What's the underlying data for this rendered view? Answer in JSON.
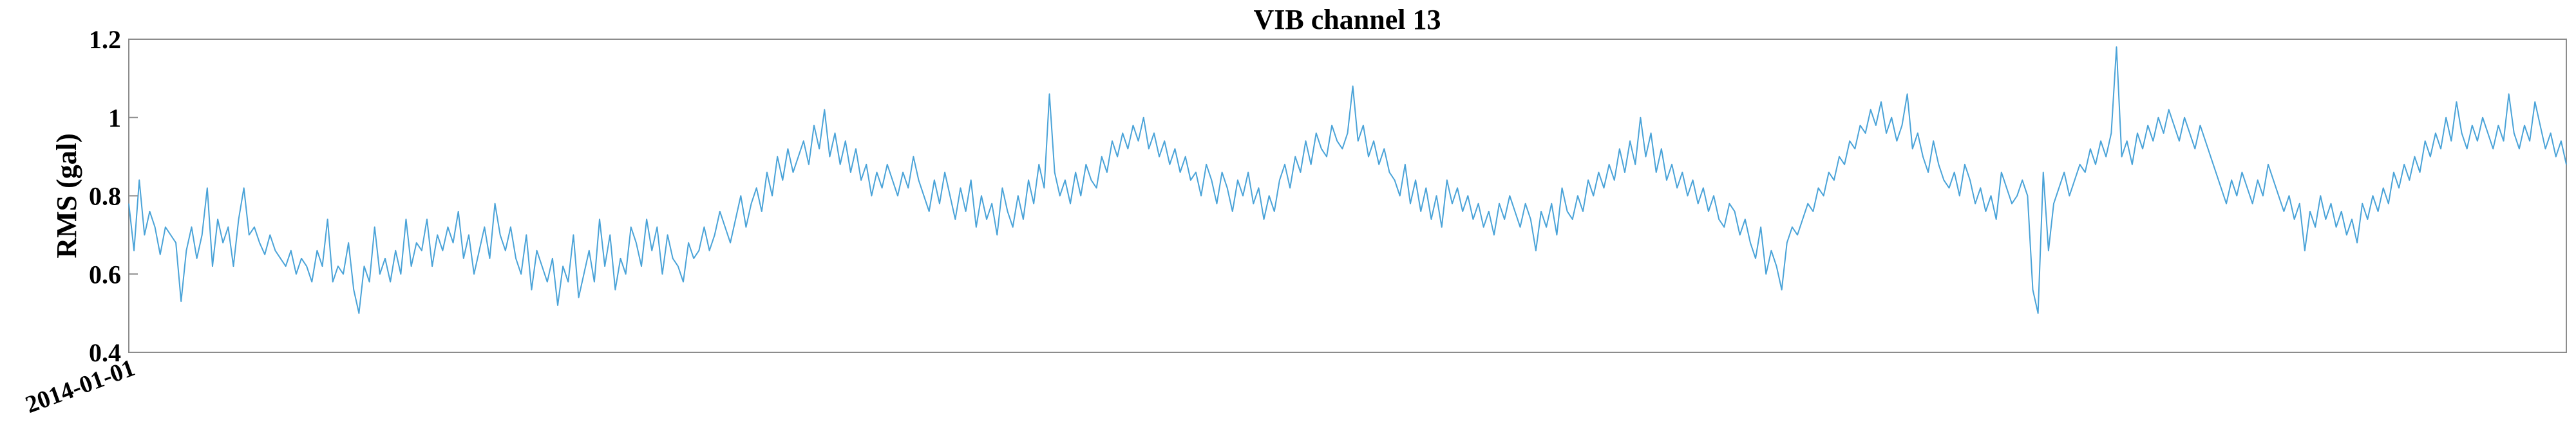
{
  "chart_data": {
    "type": "line",
    "title": "VIB channel 13",
    "xlabel": "",
    "ylabel": "RMS (gal)",
    "x_start": "2014-01-01",
    "x_tick_labels": [
      "2014-01-01"
    ],
    "ylim": [
      0.4,
      1.2
    ],
    "y_ticks": [
      0.4,
      0.6,
      0.8,
      1,
      1.2
    ],
    "y_tick_labels": [
      "0.4",
      "0.6",
      "0.8",
      "1",
      "1.2"
    ],
    "grid": false,
    "legend": "none",
    "series": [
      {
        "color": "#4aa3d8",
        "values": [
          0.78,
          0.66,
          0.84,
          0.7,
          0.76,
          0.72,
          0.65,
          0.72,
          0.7,
          0.68,
          0.53,
          0.66,
          0.72,
          0.64,
          0.7,
          0.82,
          0.62,
          0.74,
          0.68,
          0.72,
          0.62,
          0.74,
          0.82,
          0.7,
          0.72,
          0.68,
          0.65,
          0.7,
          0.66,
          0.64,
          0.62,
          0.66,
          0.6,
          0.64,
          0.62,
          0.58,
          0.66,
          0.62,
          0.74,
          0.58,
          0.62,
          0.6,
          0.68,
          0.56,
          0.5,
          0.62,
          0.58,
          0.72,
          0.6,
          0.64,
          0.58,
          0.66,
          0.6,
          0.74,
          0.62,
          0.68,
          0.66,
          0.74,
          0.62,
          0.7,
          0.66,
          0.72,
          0.68,
          0.76,
          0.64,
          0.7,
          0.6,
          0.66,
          0.72,
          0.64,
          0.78,
          0.7,
          0.66,
          0.72,
          0.64,
          0.6,
          0.7,
          0.56,
          0.66,
          0.62,
          0.58,
          0.64,
          0.52,
          0.62,
          0.58,
          0.7,
          0.54,
          0.6,
          0.66,
          0.58,
          0.74,
          0.62,
          0.7,
          0.56,
          0.64,
          0.6,
          0.72,
          0.68,
          0.62,
          0.74,
          0.66,
          0.72,
          0.6,
          0.7,
          0.64,
          0.62,
          0.58,
          0.68,
          0.64,
          0.66,
          0.72,
          0.66,
          0.7,
          0.76,
          0.72,
          0.68,
          0.74,
          0.8,
          0.72,
          0.78,
          0.82,
          0.76,
          0.86,
          0.8,
          0.9,
          0.84,
          0.92,
          0.86,
          0.9,
          0.94,
          0.88,
          0.98,
          0.92,
          1.02,
          0.9,
          0.96,
          0.88,
          0.94,
          0.86,
          0.92,
          0.84,
          0.88,
          0.8,
          0.86,
          0.82,
          0.88,
          0.84,
          0.8,
          0.86,
          0.82,
          0.9,
          0.84,
          0.8,
          0.76,
          0.84,
          0.78,
          0.86,
          0.8,
          0.74,
          0.82,
          0.76,
          0.84,
          0.72,
          0.8,
          0.74,
          0.78,
          0.7,
          0.82,
          0.76,
          0.72,
          0.8,
          0.74,
          0.84,
          0.78,
          0.88,
          0.82,
          1.06,
          0.86,
          0.8,
          0.84,
          0.78,
          0.86,
          0.8,
          0.88,
          0.84,
          0.82,
          0.9,
          0.86,
          0.94,
          0.9,
          0.96,
          0.92,
          0.98,
          0.94,
          1.0,
          0.92,
          0.96,
          0.9,
          0.94,
          0.88,
          0.92,
          0.86,
          0.9,
          0.84,
          0.86,
          0.8,
          0.88,
          0.84,
          0.78,
          0.86,
          0.82,
          0.76,
          0.84,
          0.8,
          0.86,
          0.78,
          0.82,
          0.74,
          0.8,
          0.76,
          0.84,
          0.88,
          0.82,
          0.9,
          0.86,
          0.94,
          0.88,
          0.96,
          0.92,
          0.9,
          0.98,
          0.94,
          0.92,
          0.96,
          1.08,
          0.94,
          0.98,
          0.9,
          0.94,
          0.88,
          0.92,
          0.86,
          0.84,
          0.8,
          0.88,
          0.78,
          0.84,
          0.76,
          0.82,
          0.74,
          0.8,
          0.72,
          0.84,
          0.78,
          0.82,
          0.76,
          0.8,
          0.74,
          0.78,
          0.72,
          0.76,
          0.7,
          0.78,
          0.74,
          0.8,
          0.76,
          0.72,
          0.78,
          0.74,
          0.66,
          0.76,
          0.72,
          0.78,
          0.7,
          0.82,
          0.76,
          0.74,
          0.8,
          0.76,
          0.84,
          0.8,
          0.86,
          0.82,
          0.88,
          0.84,
          0.92,
          0.86,
          0.94,
          0.88,
          1.0,
          0.9,
          0.96,
          0.86,
          0.92,
          0.84,
          0.88,
          0.82,
          0.86,
          0.8,
          0.84,
          0.78,
          0.82,
          0.76,
          0.8,
          0.74,
          0.72,
          0.78,
          0.76,
          0.7,
          0.74,
          0.68,
          0.64,
          0.72,
          0.6,
          0.66,
          0.62,
          0.56,
          0.68,
          0.72,
          0.7,
          0.74,
          0.78,
          0.76,
          0.82,
          0.8,
          0.86,
          0.84,
          0.9,
          0.88,
          0.94,
          0.92,
          0.98,
          0.96,
          1.02,
          0.98,
          1.04,
          0.96,
          1.0,
          0.94,
          0.98,
          1.06,
          0.92,
          0.96,
          0.9,
          0.86,
          0.94,
          0.88,
          0.84,
          0.82,
          0.86,
          0.8,
          0.88,
          0.84,
          0.78,
          0.82,
          0.76,
          0.8,
          0.74,
          0.86,
          0.82,
          0.78,
          0.8,
          0.84,
          0.8,
          0.56,
          0.5,
          0.86,
          0.66,
          0.78,
          0.82,
          0.86,
          0.8,
          0.84,
          0.88,
          0.86,
          0.92,
          0.88,
          0.94,
          0.9,
          0.96,
          1.18,
          0.9,
          0.94,
          0.88,
          0.96,
          0.92,
          0.98,
          0.94,
          1.0,
          0.96,
          1.02,
          0.98,
          0.94,
          1.0,
          0.96,
          0.92,
          0.98,
          0.94,
          0.9,
          0.86,
          0.82,
          0.78,
          0.84,
          0.8,
          0.86,
          0.82,
          0.78,
          0.84,
          0.8,
          0.88,
          0.84,
          0.8,
          0.76,
          0.8,
          0.74,
          0.78,
          0.66,
          0.76,
          0.72,
          0.8,
          0.74,
          0.78,
          0.72,
          0.76,
          0.7,
          0.74,
          0.68,
          0.78,
          0.74,
          0.8,
          0.76,
          0.82,
          0.78,
          0.86,
          0.82,
          0.88,
          0.84,
          0.9,
          0.86,
          0.94,
          0.9,
          0.96,
          0.92,
          1.0,
          0.94,
          1.04,
          0.96,
          0.92,
          0.98,
          0.94,
          1.0,
          0.96,
          0.92,
          0.98,
          0.94,
          1.06,
          0.96,
          0.92,
          0.98,
          0.94,
          1.04,
          0.98,
          0.92,
          0.96,
          0.9,
          0.94,
          0.88
        ]
      }
    ]
  }
}
